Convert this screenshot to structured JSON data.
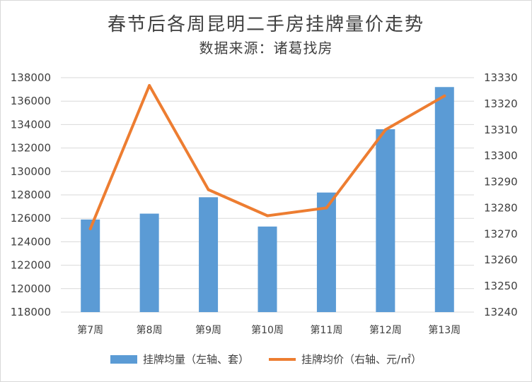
{
  "title": "春节后各周昆明二手房挂牌量价走势",
  "subtitle": "数据来源：诸葛找房",
  "colors": {
    "bar": "#5b9bd5",
    "line": "#ed7d31",
    "grid": "#d9d9d9",
    "text": "#404040"
  },
  "legend": {
    "bar_label": "挂牌均量（左轴、套）",
    "line_label": "挂牌均价（右轴、元/㎡）"
  },
  "chart_data": {
    "type": "bar+line",
    "title": "春节后各周昆明二手房挂牌量价走势",
    "subtitle": "数据来源：诸葛找房",
    "categories": [
      "第7周",
      "第8周",
      "第9周",
      "第10周",
      "第11周",
      "第12周",
      "第13周"
    ],
    "series": [
      {
        "name": "挂牌均量（左轴、套）",
        "type": "bar",
        "axis": "left",
        "values": [
          125900,
          126400,
          127800,
          125300,
          128200,
          133600,
          137200
        ]
      },
      {
        "name": "挂牌均价（右轴、元/㎡）",
        "type": "line",
        "axis": "right",
        "values": [
          13272,
          13327,
          13287,
          13277,
          13280,
          13310,
          13323
        ]
      }
    ],
    "left_axis": {
      "min": 118000,
      "max": 138000,
      "step": 2000,
      "ticks": [
        "118000",
        "120000",
        "122000",
        "124000",
        "126000",
        "128000",
        "130000",
        "132000",
        "134000",
        "136000",
        "138000"
      ]
    },
    "right_axis": {
      "min": 13240,
      "max": 13330,
      "step": 10,
      "ticks": [
        "13240",
        "13250",
        "13260",
        "13270",
        "13280",
        "13290",
        "13300",
        "13310",
        "13320",
        "13330"
      ]
    },
    "grid": true,
    "legend_position": "bottom"
  }
}
